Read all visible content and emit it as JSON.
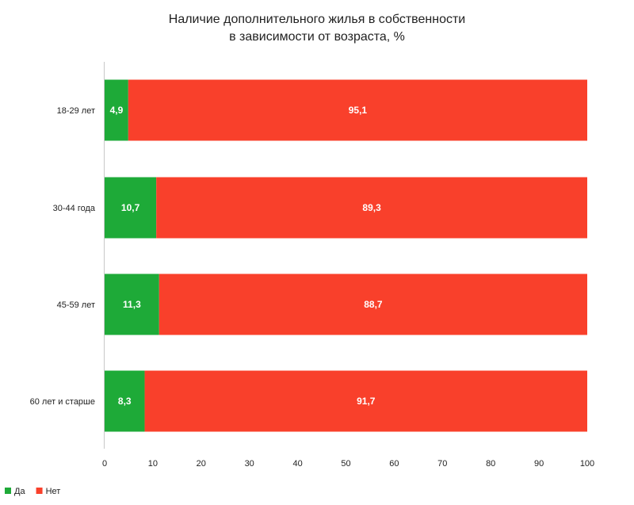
{
  "chart_data": {
    "type": "bar",
    "orientation": "horizontal",
    "stacked": true,
    "title": "Наличие дополнительного жилья в собственности в зависимости от возраста, %",
    "title_lines": [
      "Наличие дополнительного жилья в собственности",
      "в зависимости от возраста, %"
    ],
    "categories": [
      "18-29 лет",
      "30-44 года",
      "45-59 лет",
      "60 лет и старше"
    ],
    "series": [
      {
        "name": "Да",
        "color": "#1eaa38",
        "values": [
          4.9,
          10.7,
          11.3,
          8.3
        ],
        "labels": [
          "4,9",
          "10,7",
          "11,3",
          "8,3"
        ]
      },
      {
        "name": "Нет",
        "color": "#f9402b",
        "values": [
          95.1,
          89.3,
          88.7,
          91.7
        ],
        "labels": [
          "95,1",
          "89,3",
          "88,7",
          "91,7"
        ]
      }
    ],
    "xlim": [
      0,
      100
    ],
    "x_ticks": [
      0,
      10,
      20,
      30,
      40,
      50,
      60,
      70,
      80,
      90,
      100
    ],
    "grid": false,
    "legend_position": "bottom-left",
    "axis_color": "#c8c8c8"
  }
}
